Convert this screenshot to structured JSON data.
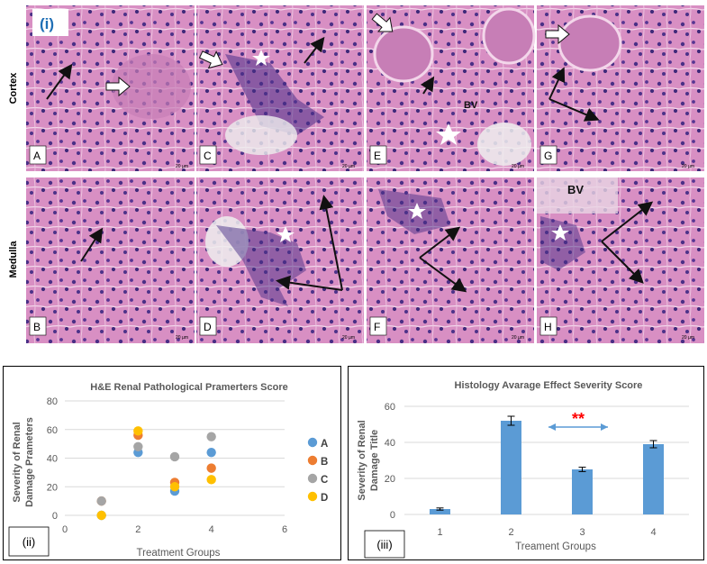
{
  "figure": {
    "panel_marker": "(i)",
    "row_labels": [
      "Cortex",
      "Medulla"
    ],
    "panels": [
      {
        "letter": "A",
        "scale": "20 µm"
      },
      {
        "letter": "C",
        "scale": "20 µm"
      },
      {
        "letter": "E",
        "scale": "20 µm",
        "annotation": "BV"
      },
      {
        "letter": "G",
        "scale": "20 µm"
      },
      {
        "letter": "B",
        "scale": "20 µm"
      },
      {
        "letter": "D",
        "scale": "20 µm"
      },
      {
        "letter": "F",
        "scale": "20 µm"
      },
      {
        "letter": "H",
        "scale": "20 µm",
        "annotation": "BV"
      }
    ],
    "colors": {
      "tissue": "#d990c4",
      "nuclei": "#3b2a78",
      "arrow": "#111111"
    }
  },
  "chart_data": [
    {
      "type": "scatter",
      "panel_tag": "(ii)",
      "title": "H&E Renal Pathological Pramerters Score",
      "xlabel": "Treatment Groups",
      "ylabel": "Severity of Renal Damage Prameters",
      "xlim": [
        0,
        6
      ],
      "ylim": [
        0,
        80
      ],
      "xticks": [
        "0",
        "2",
        "4",
        "6"
      ],
      "yticks": [
        "0",
        "20",
        "40",
        "60",
        "80"
      ],
      "grid": true,
      "legend": "right",
      "series": [
        {
          "name": "A",
          "color": "#5b9bd5",
          "x": [
            1,
            2,
            3,
            4
          ],
          "y": [
            0,
            44,
            17,
            44
          ]
        },
        {
          "name": "B",
          "color": "#ed7d31",
          "x": [
            1,
            2,
            3,
            4
          ],
          "y": [
            10,
            56,
            23,
            33
          ]
        },
        {
          "name": "C",
          "color": "#a5a5a5",
          "x": [
            1,
            2,
            3,
            4
          ],
          "y": [
            10,
            48,
            41,
            55
          ]
        },
        {
          "name": "D",
          "color": "#ffc000",
          "x": [
            1,
            2,
            3,
            4
          ],
          "y": [
            0,
            59,
            20,
            25
          ]
        }
      ]
    },
    {
      "type": "bar",
      "panel_tag": "(iii)",
      "title": "Histology Avarage Effect Severity Score",
      "xlabel": "Treament Groups",
      "ylabel": "Severity of Renal Damage Title",
      "categories": [
        "1",
        "2",
        "3",
        "4"
      ],
      "values": [
        3,
        52,
        25,
        39
      ],
      "errors": [
        0.6,
        2.5,
        1.2,
        2.0
      ],
      "ylim": [
        0,
        60
      ],
      "yticks": [
        "0",
        "20",
        "40",
        "60"
      ],
      "grid": true,
      "bar_color": "#5b9bd5",
      "significance": "**",
      "significance_color": "#ff0000"
    }
  ]
}
